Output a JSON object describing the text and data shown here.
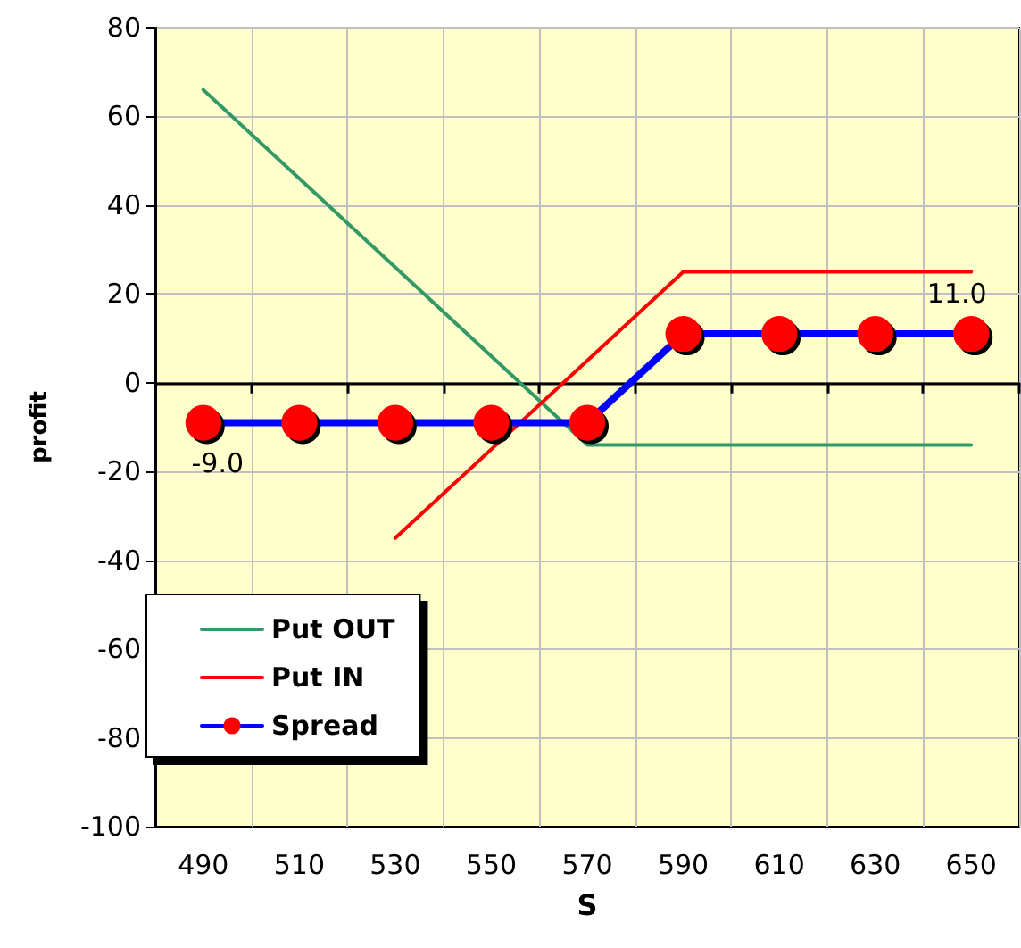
{
  "chart_data": {
    "type": "line",
    "xlabel": "S",
    "ylabel": "profit",
    "categories": [
      "490",
      "510",
      "530",
      "550",
      "570",
      "590",
      "610",
      "630",
      "650"
    ],
    "series": [
      {
        "name": "Put OUT",
        "color": "#339966",
        "values": [
          66,
          46,
          26,
          6,
          -14,
          -14,
          -14,
          -14,
          -14
        ],
        "marker": "none"
      },
      {
        "name": "Put IN",
        "color": "#ff0000",
        "values": [
          null,
          null,
          -35,
          -15,
          5,
          25,
          25,
          25,
          25
        ],
        "marker": "none"
      },
      {
        "name": "Spread",
        "color": "#0000ff",
        "values": [
          -9,
          -9,
          -9,
          -9,
          -9,
          11,
          11,
          11,
          11
        ],
        "marker": "circle",
        "value_labels": [
          "-9.0",
          null,
          null,
          null,
          null,
          null,
          null,
          null,
          "11.0"
        ]
      }
    ],
    "ylim": [
      -100,
      80
    ],
    "yticks": [
      -100,
      -80,
      -60,
      -40,
      -20,
      0,
      20,
      40,
      60,
      80
    ],
    "grid": true,
    "legend": "bottom left",
    "line_style": "solid"
  }
}
